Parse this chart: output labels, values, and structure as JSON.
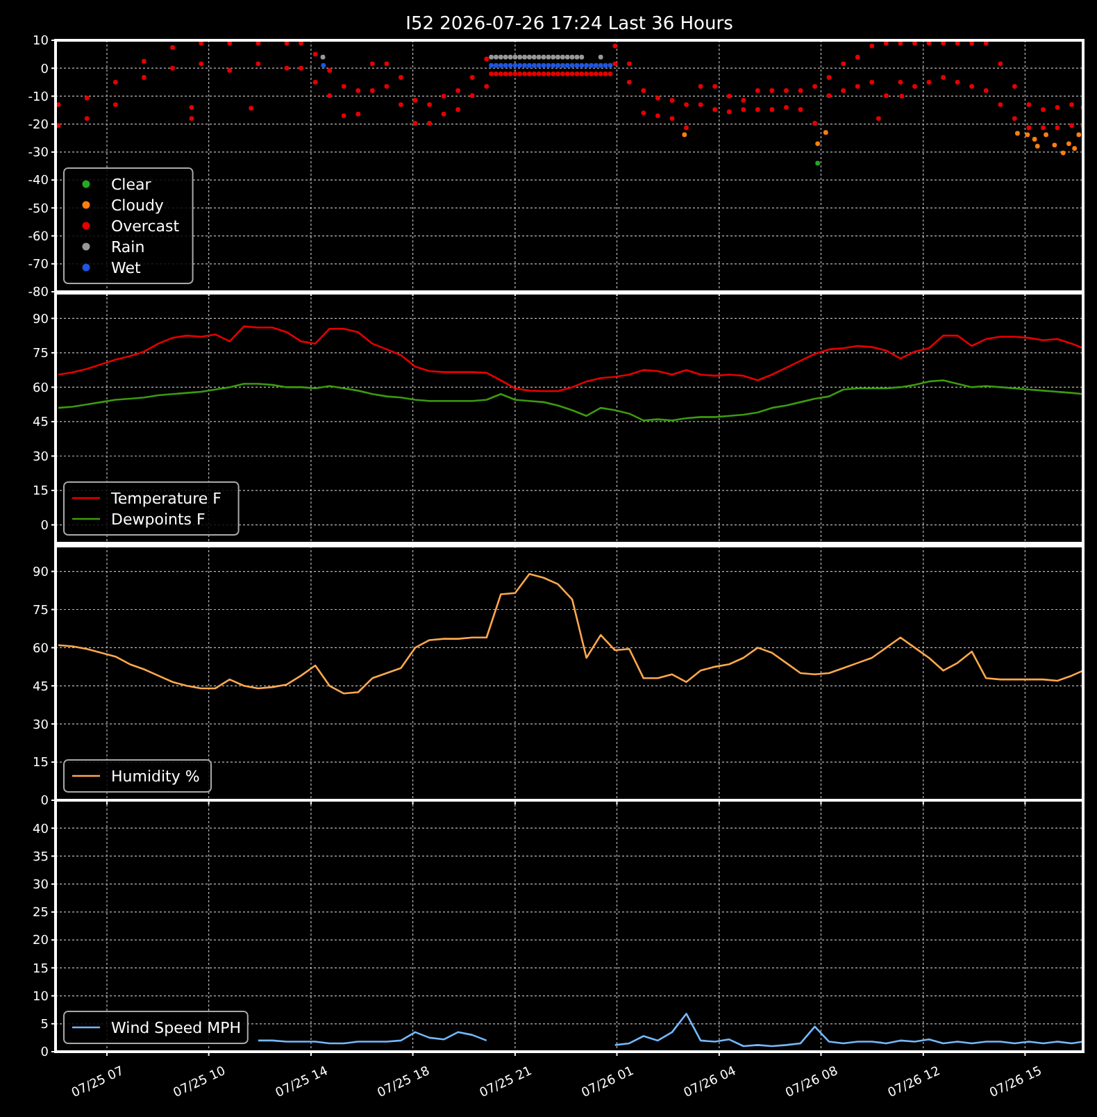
{
  "chart_data": [
    {
      "type": "scatter",
      "title": "I52 2026-07-26 17:24 Last 36 Hours",
      "marker": "circle",
      "grid": true,
      "legend": "bottom left",
      "tick_labels": "y",
      "xlim": [
        "2026-07-25T05:24",
        "2026-07-26T17:24"
      ],
      "xticks": [
        {
          "value": "2026-07-25T07:12",
          "label": null
        },
        {
          "value": "2026-07-25T10:46",
          "label": null
        },
        {
          "value": "2026-07-25T14:21",
          "label": null
        },
        {
          "value": "2026-07-25T17:55",
          "label": null
        },
        {
          "value": "2026-07-25T21:30",
          "label": null
        },
        {
          "value": "2026-07-26T01:04",
          "label": null
        },
        {
          "value": "2026-07-26T04:39",
          "label": null
        },
        {
          "value": "2026-07-26T08:13",
          "label": null
        },
        {
          "value": "2026-07-26T11:48",
          "label": null
        },
        {
          "value": "2026-07-26T15:22",
          "label": null
        }
      ],
      "ylim": [
        -80,
        10
      ],
      "yticks": [
        -80,
        -70,
        -60,
        -50,
        -40,
        -30,
        -20,
        -10,
        0,
        10
      ],
      "series": [
        {
          "name": "Clear",
          "color": "#22aa22",
          "x": [
            "2026-07-26T08:06"
          ],
          "values": [
            -34
          ]
        },
        {
          "name": "Cloudy",
          "color": "#ff7f0e",
          "x": [
            "2026-07-26T03:26",
            "2026-07-26T08:06",
            "2026-07-26T08:23",
            "2026-07-26T15:06",
            "2026-07-26T15:27",
            "2026-07-26T15:42",
            "2026-07-26T15:48",
            "2026-07-26T16:06",
            "2026-07-26T16:24",
            "2026-07-26T16:42",
            "2026-07-26T16:54",
            "2026-07-26T17:06",
            "2026-07-26T17:15"
          ],
          "values": [
            -23.8,
            -27,
            -23,
            -23.3,
            -23.8,
            -25.4,
            -27.9,
            -23.8,
            -27.5,
            -30.3,
            -27,
            -28.7,
            -23.8
          ]
        },
        {
          "name": "Overcast",
          "color": "#e60000",
          "x": [
            "2026-07-25T05:30",
            "2026-07-25T05:30",
            "2026-07-25T06:30",
            "2026-07-25T06:30",
            "2026-07-25T07:30",
            "2026-07-25T07:30",
            "2026-07-25T08:30",
            "2026-07-25T08:30",
            "2026-07-25T09:30",
            "2026-07-25T09:30",
            "2026-07-25T10:30",
            "2026-07-25T10:30",
            "2026-07-25T11:30",
            "2026-07-25T11:30",
            "2026-07-25T12:30",
            "2026-07-25T12:30",
            "2026-07-25T13:30",
            "2026-07-25T13:30",
            "2026-07-25T14:00",
            "2026-07-25T14:00",
            "2026-07-25T14:30",
            "2026-07-25T14:30",
            "2026-07-25T15:00",
            "2026-07-25T15:00",
            "2026-07-25T15:30",
            "2026-07-25T15:30",
            "2026-07-25T16:00",
            "2026-07-25T16:00",
            "2026-07-25T16:30",
            "2026-07-25T16:30",
            "2026-07-25T17:00",
            "2026-07-25T17:00",
            "2026-07-25T17:30",
            "2026-07-25T17:30",
            "2026-07-25T18:00",
            "2026-07-25T18:00",
            "2026-07-25T18:30",
            "2026-07-25T18:30",
            "2026-07-25T19:00",
            "2026-07-25T19:00",
            "2026-07-25T19:30",
            "2026-07-25T19:30",
            "2026-07-25T20:00",
            "2026-07-25T20:00",
            "2026-07-25T20:30",
            "2026-07-25T20:30",
            "2026-07-25T10:10",
            "2026-07-25T10:10",
            "2026-07-25T12:15",
            "2026-07-25T20:40",
            "2026-07-25T20:50",
            "2026-07-25T21:00",
            "2026-07-25T21:10",
            "2026-07-25T21:20",
            "2026-07-25T21:30",
            "2026-07-25T21:40",
            "2026-07-25T21:50",
            "2026-07-25T22:00",
            "2026-07-25T22:10",
            "2026-07-25T22:20",
            "2026-07-25T22:30",
            "2026-07-25T22:40",
            "2026-07-25T22:50",
            "2026-07-25T23:00",
            "2026-07-25T23:10",
            "2026-07-25T23:20",
            "2026-07-25T23:30",
            "2026-07-25T23:40",
            "2026-07-25T23:50",
            "2026-07-26T00:00",
            "2026-07-26T00:10",
            "2026-07-26T00:20",
            "2026-07-26T00:30",
            "2026-07-26T00:40",
            "2026-07-26T00:50",
            "2026-07-26T01:00",
            "2026-07-26T01:00",
            "2026-07-26T01:30",
            "2026-07-26T01:30",
            "2026-07-26T02:00",
            "2026-07-26T02:00",
            "2026-07-26T02:30",
            "2026-07-26T02:30",
            "2026-07-26T03:00",
            "2026-07-26T03:00",
            "2026-07-26T03:30",
            "2026-07-26T03:30",
            "2026-07-26T04:00",
            "2026-07-26T04:00",
            "2026-07-26T04:30",
            "2026-07-26T04:30",
            "2026-07-26T05:00",
            "2026-07-26T05:00",
            "2026-07-26T05:30",
            "2026-07-26T05:30",
            "2026-07-26T06:00",
            "2026-07-26T06:00",
            "2026-07-26T06:30",
            "2026-07-26T06:30",
            "2026-07-26T07:00",
            "2026-07-26T07:00",
            "2026-07-26T07:30",
            "2026-07-26T07:30",
            "2026-07-26T08:00",
            "2026-07-26T08:00",
            "2026-07-26T08:30",
            "2026-07-26T08:30",
            "2026-07-26T09:00",
            "2026-07-26T09:00",
            "2026-07-26T09:30",
            "2026-07-26T09:30",
            "2026-07-26T10:00",
            "2026-07-26T10:00",
            "2026-07-26T10:30",
            "2026-07-26T10:30",
            "2026-07-26T11:00",
            "2026-07-26T11:00",
            "2026-07-26T11:30",
            "2026-07-26T11:30",
            "2026-07-26T12:00",
            "2026-07-26T12:00",
            "2026-07-26T12:30",
            "2026-07-26T12:30",
            "2026-07-26T13:00",
            "2026-07-26T13:00",
            "2026-07-26T13:30",
            "2026-07-26T13:30",
            "2026-07-26T14:00",
            "2026-07-26T14:00",
            "2026-07-26T14:30",
            "2026-07-26T14:30",
            "2026-07-26T15:00",
            "2026-07-26T15:00",
            "2026-07-26T15:30",
            "2026-07-26T15:30",
            "2026-07-26T16:00",
            "2026-07-26T16:00",
            "2026-07-26T16:30",
            "2026-07-26T16:30",
            "2026-07-26T17:00",
            "2026-07-26T17:00",
            "2026-07-26T17:24",
            "2026-07-26T17:24",
            "2026-07-26T10:14",
            "2026-07-26T11:03"
          ],
          "values": [
            -13,
            -20.5,
            -10.7,
            -18,
            -5,
            -13,
            2.5,
            -3.3,
            7.4,
            0,
            9,
            1.6,
            9,
            -0.8,
            9,
            1.6,
            9,
            0,
            9,
            0,
            5,
            -5,
            -0.8,
            -9.8,
            -6.5,
            -17,
            -8,
            -16.4,
            1.6,
            -8,
            1.6,
            -6.5,
            -3.3,
            -13,
            -11.5,
            -19.7,
            -13,
            -19.7,
            -10,
            -16.4,
            -8,
            -14.8,
            -3.3,
            -9.8,
            3.3,
            -6.5,
            -14,
            -18,
            -14.3,
            -2,
            -2,
            -2,
            -2,
            -2,
            -2,
            -2,
            -2,
            -2,
            -2,
            -2,
            -2,
            -2,
            -2,
            -2,
            -2,
            -2,
            -2,
            -2,
            -2,
            -2,
            -2,
            -2,
            -2,
            -2,
            -2,
            8,
            1.6,
            1.6,
            -5,
            -8,
            -16,
            -10.7,
            -17,
            -11.5,
            -18,
            -13,
            -21.3,
            -6.5,
            -13,
            -6.5,
            -14.8,
            -10,
            -15.6,
            -11.5,
            -14.8,
            -8,
            -14.8,
            -8,
            -14.8,
            -8,
            -14,
            -8,
            -14.8,
            -6.5,
            -19.7,
            -3.3,
            -9.8,
            1.6,
            -8,
            4,
            -6.5,
            8,
            -5,
            9,
            -9.8,
            9,
            -5,
            9,
            -6.5,
            9,
            -5,
            9,
            -3.3,
            9,
            -5,
            9,
            -6.5,
            9,
            -8,
            1.6,
            -13,
            -6.5,
            -18,
            -13,
            -21.3,
            -14.8,
            -21.3,
            -14,
            -21.3,
            -13,
            -20.5,
            -14,
            -20.5,
            -18,
            -10
          ]
        },
        {
          "name": "Rain",
          "color": "#999999",
          "x": [
            "2026-07-25T14:46",
            "2026-07-25T20:40",
            "2026-07-25T20:50",
            "2026-07-25T21:00",
            "2026-07-25T21:10",
            "2026-07-25T21:20",
            "2026-07-25T21:30",
            "2026-07-25T21:40",
            "2026-07-25T21:50",
            "2026-07-25T22:00",
            "2026-07-25T22:10",
            "2026-07-25T22:20",
            "2026-07-25T22:30",
            "2026-07-25T22:40",
            "2026-07-25T22:50",
            "2026-07-25T23:00",
            "2026-07-25T23:10",
            "2026-07-25T23:20",
            "2026-07-25T23:30",
            "2026-07-25T23:40",
            "2026-07-25T23:50",
            "2026-07-26T00:30"
          ],
          "values": [
            4,
            4,
            4,
            4,
            4,
            4,
            4,
            4,
            4,
            4,
            4,
            4,
            4,
            4,
            4,
            4,
            4,
            4,
            4,
            4,
            4,
            4
          ]
        },
        {
          "name": "Wet",
          "color": "#1f55e0",
          "x": [
            "2026-07-25T14:47",
            "2026-07-25T20:40",
            "2026-07-25T20:50",
            "2026-07-25T21:00",
            "2026-07-25T21:10",
            "2026-07-25T21:20",
            "2026-07-25T21:30",
            "2026-07-25T21:40",
            "2026-07-25T21:50",
            "2026-07-25T22:00",
            "2026-07-25T22:10",
            "2026-07-25T22:20",
            "2026-07-25T22:30",
            "2026-07-25T22:40",
            "2026-07-25T22:50",
            "2026-07-25T23:00",
            "2026-07-25T23:10",
            "2026-07-25T23:20",
            "2026-07-25T23:30",
            "2026-07-25T23:40",
            "2026-07-25T23:50",
            "2026-07-26T00:00",
            "2026-07-26T00:10",
            "2026-07-26T00:20",
            "2026-07-26T00:30",
            "2026-07-26T00:40",
            "2026-07-26T00:50"
          ],
          "values": [
            1,
            1,
            1,
            1,
            1,
            1,
            1,
            1,
            1,
            1,
            1,
            1,
            1,
            1,
            1,
            1,
            1,
            1,
            1,
            1,
            1,
            1,
            1,
            1,
            1,
            1,
            1
          ]
        }
      ]
    },
    {
      "type": "line",
      "grid": true,
      "legend": "bottom left",
      "tick_labels": "y",
      "xlim": [
        "2026-07-25T05:24",
        "2026-07-26T17:24"
      ],
      "xticks": [
        {
          "value": "2026-07-25T07:12",
          "label": null
        },
        {
          "value": "2026-07-25T10:46",
          "label": null
        },
        {
          "value": "2026-07-25T14:21",
          "label": null
        },
        {
          "value": "2026-07-25T17:55",
          "label": null
        },
        {
          "value": "2026-07-25T21:30",
          "label": null
        },
        {
          "value": "2026-07-26T01:04",
          "label": null
        },
        {
          "value": "2026-07-26T04:39",
          "label": null
        },
        {
          "value": "2026-07-26T08:13",
          "label": null
        },
        {
          "value": "2026-07-26T11:48",
          "label": null
        },
        {
          "value": "2026-07-26T15:22",
          "label": null
        }
      ],
      "ylim": [
        -8,
        101
      ],
      "yticks": [
        0,
        15,
        30,
        45,
        60,
        75,
        90
      ],
      "x": [
        "2026-07-25T05:30",
        "2026-07-25T06:00",
        "2026-07-25T06:30",
        "2026-07-25T07:00",
        "2026-07-25T07:30",
        "2026-07-25T08:00",
        "2026-07-25T08:30",
        "2026-07-25T09:00",
        "2026-07-25T09:30",
        "2026-07-25T10:00",
        "2026-07-25T10:30",
        "2026-07-25T11:00",
        "2026-07-25T11:30",
        "2026-07-25T12:00",
        "2026-07-25T12:30",
        "2026-07-25T13:00",
        "2026-07-25T13:30",
        "2026-07-25T14:00",
        "2026-07-25T14:30",
        "2026-07-25T15:00",
        "2026-07-25T15:30",
        "2026-07-25T16:00",
        "2026-07-25T16:30",
        "2026-07-25T17:00",
        "2026-07-25T17:30",
        "2026-07-25T18:00",
        "2026-07-25T18:30",
        "2026-07-25T19:00",
        "2026-07-25T19:30",
        "2026-07-25T20:00",
        "2026-07-25T20:30",
        "2026-07-25T21:00",
        "2026-07-25T21:30",
        "2026-07-25T22:00",
        "2026-07-25T22:30",
        "2026-07-25T23:00",
        "2026-07-25T23:30",
        "2026-07-26T00:00",
        "2026-07-26T00:30",
        "2026-07-26T01:00",
        "2026-07-26T01:30",
        "2026-07-26T02:00",
        "2026-07-26T02:30",
        "2026-07-26T03:00",
        "2026-07-26T03:30",
        "2026-07-26T04:00",
        "2026-07-26T04:30",
        "2026-07-26T05:00",
        "2026-07-26T05:30",
        "2026-07-26T06:00",
        "2026-07-26T06:30",
        "2026-07-26T07:00",
        "2026-07-26T07:30",
        "2026-07-26T08:00",
        "2026-07-26T08:30",
        "2026-07-26T09:00",
        "2026-07-26T09:30",
        "2026-07-26T10:00",
        "2026-07-26T10:30",
        "2026-07-26T11:00",
        "2026-07-26T11:30",
        "2026-07-26T12:00",
        "2026-07-26T12:30",
        "2026-07-26T13:00",
        "2026-07-26T13:30",
        "2026-07-26T14:00",
        "2026-07-26T14:30",
        "2026-07-26T15:00",
        "2026-07-26T15:30",
        "2026-07-26T16:00",
        "2026-07-26T16:30",
        "2026-07-26T17:00",
        "2026-07-26T17:24"
      ],
      "series": [
        {
          "name": "Temperature F",
          "color": "#e60000",
          "values": [
            65.5,
            66.5,
            68,
            70,
            72,
            73.5,
            75.5,
            79,
            81.5,
            82.5,
            82,
            83,
            80,
            86.5,
            86,
            86,
            84,
            80,
            79,
            85.5,
            85.5,
            84,
            79,
            76.5,
            74,
            69,
            67,
            66.6,
            66.6,
            66.6,
            66.3,
            63,
            59.5,
            58.5,
            58.3,
            58.3,
            60,
            62.5,
            64,
            64.5,
            65.5,
            67.5,
            67,
            65.5,
            67.5,
            65.5,
            65,
            65.5,
            65,
            63,
            65.5,
            68.5,
            71.5,
            74.5,
            76.5,
            77,
            78,
            77.5,
            76,
            72.5,
            75.5,
            77,
            82.5,
            82.5,
            78,
            81,
            82,
            82,
            81.5,
            80.5,
            81,
            79,
            77
          ]
        },
        {
          "name": "Dewpoints F",
          "color": "#3c9a0e",
          "values": [
            51,
            51.5,
            52.5,
            53.5,
            54.5,
            55,
            55.5,
            56.5,
            57,
            57.5,
            58,
            59,
            60,
            61.5,
            61.5,
            61,
            60,
            60,
            59.5,
            60.5,
            59.5,
            58.5,
            57,
            56,
            55.5,
            54.5,
            54,
            54,
            54,
            54,
            54.5,
            57,
            54.5,
            54,
            53.5,
            52,
            50,
            47.5,
            51,
            50,
            48.5,
            45.5,
            46,
            45.5,
            46.5,
            47,
            47,
            47.5,
            48,
            49,
            51,
            52,
            53.5,
            55,
            56,
            59,
            59.5,
            59.5,
            59.5,
            60,
            61,
            62.5,
            63,
            61.5,
            60,
            60.5,
            60,
            59.5,
            59,
            58.5,
            58,
            57.5,
            57
          ]
        }
      ]
    },
    {
      "type": "line",
      "grid": true,
      "legend": "bottom left",
      "tick_labels": "y",
      "xlim": [
        "2026-07-25T05:24",
        "2026-07-26T17:24"
      ],
      "xticks": [
        {
          "value": "2026-07-25T07:12",
          "label": null
        },
        {
          "value": "2026-07-25T10:46",
          "label": null
        },
        {
          "value": "2026-07-25T14:21",
          "label": null
        },
        {
          "value": "2026-07-25T17:55",
          "label": null
        },
        {
          "value": "2026-07-25T21:30",
          "label": null
        },
        {
          "value": "2026-07-26T01:04",
          "label": null
        },
        {
          "value": "2026-07-26T04:39",
          "label": null
        },
        {
          "value": "2026-07-26T08:13",
          "label": null
        },
        {
          "value": "2026-07-26T11:48",
          "label": null
        },
        {
          "value": "2026-07-26T15:22",
          "label": null
        }
      ],
      "ylim": [
        0,
        100
      ],
      "yticks": [
        0,
        15,
        30,
        45,
        60,
        75,
        90
      ],
      "x": [
        "2026-07-25T05:30",
        "2026-07-25T06:00",
        "2026-07-25T06:30",
        "2026-07-25T07:00",
        "2026-07-25T07:30",
        "2026-07-25T08:00",
        "2026-07-25T08:30",
        "2026-07-25T09:00",
        "2026-07-25T09:30",
        "2026-07-25T10:00",
        "2026-07-25T10:30",
        "2026-07-25T11:00",
        "2026-07-25T11:30",
        "2026-07-25T12:00",
        "2026-07-25T12:30",
        "2026-07-25T13:00",
        "2026-07-25T13:30",
        "2026-07-25T14:00",
        "2026-07-25T14:30",
        "2026-07-25T15:00",
        "2026-07-25T15:30",
        "2026-07-25T16:00",
        "2026-07-25T16:30",
        "2026-07-25T17:00",
        "2026-07-25T17:30",
        "2026-07-25T18:00",
        "2026-07-25T18:30",
        "2026-07-25T19:00",
        "2026-07-25T19:30",
        "2026-07-25T20:00",
        "2026-07-25T20:30",
        "2026-07-25T21:00",
        "2026-07-25T21:30",
        "2026-07-25T22:00",
        "2026-07-25T22:30",
        "2026-07-25T23:00",
        "2026-07-25T23:30",
        "2026-07-26T00:00",
        "2026-07-26T00:30",
        "2026-07-26T01:00",
        "2026-07-26T01:30",
        "2026-07-26T02:00",
        "2026-07-26T02:30",
        "2026-07-26T03:00",
        "2026-07-26T03:30",
        "2026-07-26T04:00",
        "2026-07-26T04:30",
        "2026-07-26T05:00",
        "2026-07-26T05:30",
        "2026-07-26T06:00",
        "2026-07-26T06:30",
        "2026-07-26T07:00",
        "2026-07-26T07:30",
        "2026-07-26T08:00",
        "2026-07-26T08:30",
        "2026-07-26T09:00",
        "2026-07-26T09:30",
        "2026-07-26T10:00",
        "2026-07-26T10:30",
        "2026-07-26T11:00",
        "2026-07-26T11:30",
        "2026-07-26T12:00",
        "2026-07-26T12:30",
        "2026-07-26T13:00",
        "2026-07-26T13:30",
        "2026-07-26T14:00",
        "2026-07-26T14:30",
        "2026-07-26T15:00",
        "2026-07-26T15:30",
        "2026-07-26T16:00",
        "2026-07-26T16:30",
        "2026-07-26T17:00",
        "2026-07-26T17:24"
      ],
      "series": [
        {
          "name": "Humidity %",
          "color": "#ffa94d",
          "values": [
            61,
            60.5,
            59.5,
            58,
            56.5,
            53.5,
            51.5,
            49,
            46.5,
            45,
            44,
            44,
            47.5,
            45,
            44,
            44.5,
            45.5,
            49,
            53,
            45,
            42,
            42.5,
            48,
            50,
            52,
            60,
            63,
            63.5,
            63.5,
            64,
            64,
            81,
            81.5,
            89,
            87.5,
            85,
            79,
            56,
            65,
            59,
            59.5,
            48,
            48,
            49.5,
            46.5,
            51,
            52.5,
            53.5,
            56,
            60,
            58,
            54,
            50,
            49.5,
            50,
            52,
            54,
            56,
            60,
            64,
            60,
            56,
            51,
            54,
            58.5,
            48,
            47.5,
            47.5,
            47.5,
            47.5,
            47,
            49,
            51
          ]
        }
      ]
    },
    {
      "type": "line",
      "grid": true,
      "legend": "bottom left",
      "xlim": [
        "2026-07-25T05:24",
        "2026-07-26T17:24"
      ],
      "xticks": [
        {
          "value": "2026-07-25T07:12",
          "label": "07/25 07"
        },
        {
          "value": "2026-07-25T10:46",
          "label": "07/25 10"
        },
        {
          "value": "2026-07-25T14:21",
          "label": "07/25 14"
        },
        {
          "value": "2026-07-25T17:55",
          "label": "07/25 18"
        },
        {
          "value": "2026-07-25T21:30",
          "label": "07/25 21"
        },
        {
          "value": "2026-07-26T01:04",
          "label": "07/26 01"
        },
        {
          "value": "2026-07-26T04:39",
          "label": "07/26 04"
        },
        {
          "value": "2026-07-26T08:13",
          "label": "07/26 08"
        },
        {
          "value": "2026-07-26T11:48",
          "label": "07/26 12"
        },
        {
          "value": "2026-07-26T15:22",
          "label": "07/26 15"
        }
      ],
      "ylim": [
        0,
        45
      ],
      "yticks": [
        0,
        5,
        10,
        15,
        20,
        25,
        30,
        35,
        40
      ],
      "series": [
        {
          "name": "Wind Speed MPH",
          "color": "#74b9ff",
          "x": [
            "2026-07-25T12:30",
            "2026-07-25T13:00",
            "2026-07-25T13:30",
            "2026-07-25T14:00",
            "2026-07-25T14:30",
            "2026-07-25T15:00",
            "2026-07-25T15:30",
            "2026-07-25T16:00",
            "2026-07-25T16:30",
            "2026-07-25T17:00",
            "2026-07-25T17:30",
            "2026-07-25T18:00",
            "2026-07-25T18:30",
            "2026-07-25T19:00",
            "2026-07-25T19:30",
            "2026-07-25T20:00",
            "2026-07-25T20:30",
            "2026-07-25T22:30",
            "2026-07-26T01:00",
            "2026-07-26T01:30",
            "2026-07-26T02:00",
            "2026-07-26T02:30",
            "2026-07-26T03:00",
            "2026-07-26T03:30",
            "2026-07-26T04:00",
            "2026-07-26T04:30",
            "2026-07-26T05:00",
            "2026-07-26T05:30",
            "2026-07-26T06:00",
            "2026-07-26T06:30",
            "2026-07-26T07:00",
            "2026-07-26T07:30",
            "2026-07-26T08:00",
            "2026-07-26T08:30",
            "2026-07-26T09:00",
            "2026-07-26T09:30",
            "2026-07-26T10:00",
            "2026-07-26T10:30",
            "2026-07-26T11:00",
            "2026-07-26T11:30",
            "2026-07-26T12:00",
            "2026-07-26T12:30",
            "2026-07-26T13:00",
            "2026-07-26T13:30",
            "2026-07-26T14:00",
            "2026-07-26T14:30",
            "2026-07-26T15:00",
            "2026-07-26T15:30",
            "2026-07-26T16:00",
            "2026-07-26T16:30",
            "2026-07-26T17:00",
            "2026-07-26T17:24"
          ],
          "values": [
            2,
            2,
            1.8,
            1.8,
            1.8,
            1.5,
            1.5,
            1.8,
            1.8,
            1.8,
            2,
            3.5,
            2.5,
            2.2,
            3.5,
            3,
            2,
            null,
            1.2,
            1.5,
            2.8,
            2,
            3.5,
            6.8,
            2,
            1.8,
            2.2,
            1,
            1.2,
            1,
            1.2,
            1.5,
            4.5,
            1.8,
            1.5,
            1.8,
            1.8,
            1.5,
            2,
            1.8,
            2.2,
            1.5,
            1.8,
            1.5,
            1.8,
            1.8,
            1.5,
            1.8,
            1.5,
            1.8,
            1.5,
            1.8
          ]
        }
      ]
    }
  ]
}
